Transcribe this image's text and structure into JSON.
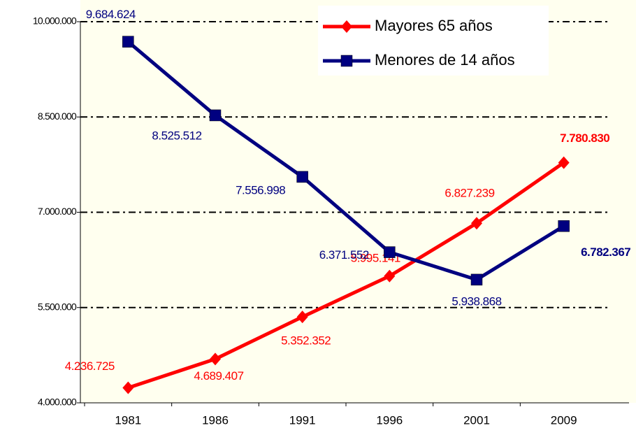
{
  "chart_data": {
    "type": "line",
    "categories": [
      "1981",
      "1986",
      "1991",
      "1996",
      "2001",
      "2009"
    ],
    "series": [
      {
        "name": "Mayores 65 años",
        "color": "#ff0000",
        "marker": "diamond",
        "values": [
          4236725,
          4689407,
          5352352,
          5995141,
          6827239,
          7780830
        ],
        "value_labels": [
          "4.236.725",
          "4.689.407",
          "5.352.352",
          "5.995.141",
          "6.827.239",
          "7.780.830"
        ]
      },
      {
        "name": "Menores de 14 años",
        "color": "#000080",
        "marker": "square",
        "values": [
          9684624,
          8525512,
          7556998,
          6371552,
          5938868,
          6782367
        ],
        "value_labels": [
          "9.684.624",
          "8.525.512",
          "7.556.998",
          "6.371.552",
          "5.938.868",
          "6.782.367"
        ]
      }
    ],
    "ylim": [
      4000000,
      10000000
    ],
    "yticks": [
      {
        "value": 4000000,
        "label": "4.000.000"
      },
      {
        "value": 5500000,
        "label": "5.500.000"
      },
      {
        "value": 7000000,
        "label": "7.000.000"
      },
      {
        "value": 8500000,
        "label": "8.500.000"
      },
      {
        "value": 10000000,
        "label": "10.000.000"
      }
    ],
    "grid": true
  }
}
